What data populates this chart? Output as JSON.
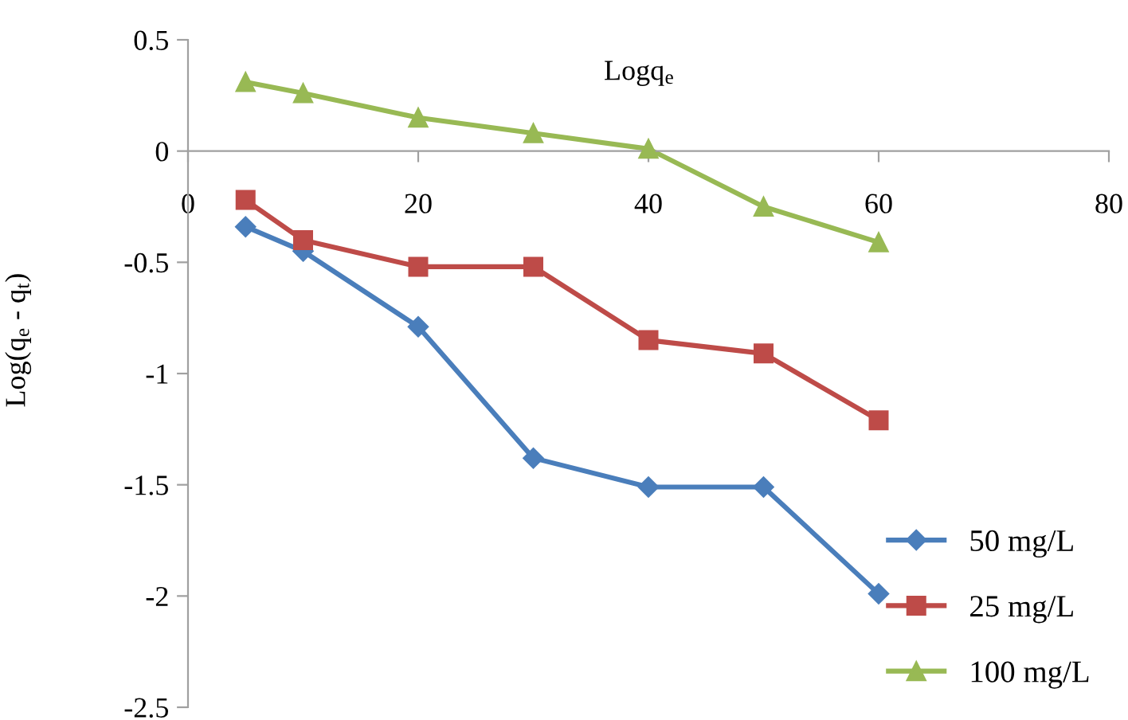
{
  "chart_data": {
    "type": "line",
    "xlabel": "Logq$_{e}$",
    "ylabel": "Log(q$_{e}$ - q$_{t}$)",
    "x": [
      5,
      10,
      20,
      30,
      40,
      50,
      60
    ],
    "xlim": [
      0,
      80
    ],
    "xticks": [
      0,
      20,
      40,
      60,
      80
    ],
    "ylim": [
      -2.5,
      0.5
    ],
    "yticks": [
      -2.5,
      -2,
      -1.5,
      -1,
      -0.5,
      0,
      0.5
    ],
    "grid": false,
    "legend": "bottom right",
    "series": [
      {
        "name": "50 mg/L",
        "color": "#4a7ebb",
        "marker": "diamond",
        "values": [
          -0.34,
          -0.45,
          -0.79,
          -1.38,
          -1.51,
          -1.51,
          -1.99
        ]
      },
      {
        "name": "25 mg/L",
        "color": "#be4b48",
        "marker": "square",
        "values": [
          -0.22,
          -0.4,
          -0.52,
          -0.52,
          -0.85,
          -0.91,
          -1.21
        ]
      },
      {
        "name": "100 mg/L",
        "color": "#98b954",
        "marker": "triangle",
        "values": [
          0.31,
          0.26,
          0.15,
          0.08,
          0.01,
          -0.25,
          -0.41
        ]
      }
    ]
  }
}
